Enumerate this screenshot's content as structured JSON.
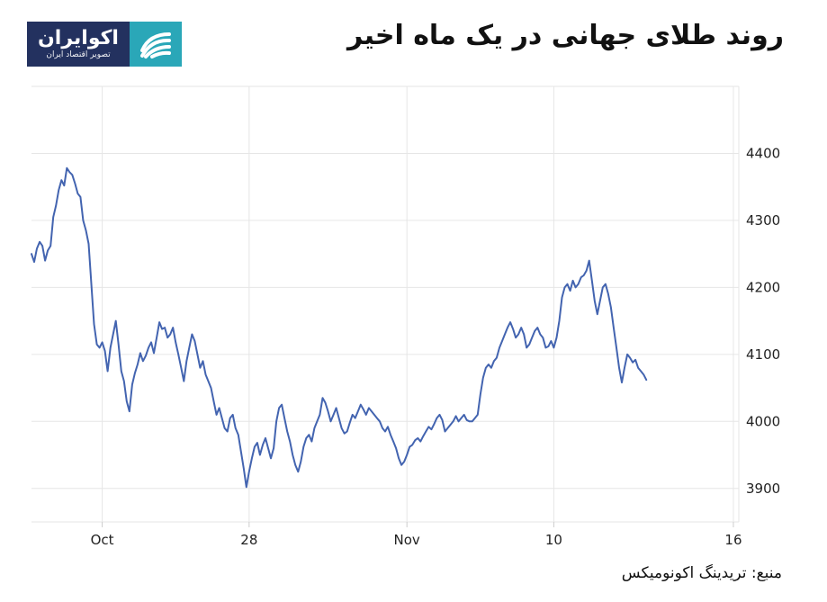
{
  "header": {
    "title": "روند طلای جهانی در یک ماه اخیر"
  },
  "logo": {
    "name": "اکوایران",
    "tagline": "تصویر اقتصاد ایران",
    "icon": "stripes-logo-icon",
    "colors": {
      "dark": "#23315f",
      "accent": "#2aa7b8"
    }
  },
  "chart_data": {
    "type": "line",
    "y_ticks": [
      "3900",
      "4000",
      "4100",
      "4200",
      "4300",
      "4400"
    ],
    "y_range": [
      3850,
      4500
    ],
    "x_ticks": [
      {
        "label": "Oct",
        "x": 3
      },
      {
        "label": "28",
        "x": 30
      },
      {
        "label": "Nov",
        "x": 59
      },
      {
        "label": "10",
        "x": 86
      },
      {
        "label": "16",
        "x": 119
      }
    ],
    "x_range": [
      -10,
      120
    ],
    "grid": true,
    "line_color": "#4364b0",
    "series": [
      {
        "name": "",
        "points": [
          [
            -10,
            4250
          ],
          [
            -9.5,
            4238
          ],
          [
            -9,
            4258
          ],
          [
            -8.5,
            4268
          ],
          [
            -8,
            4262
          ],
          [
            -7.5,
            4240
          ],
          [
            -7,
            4255
          ],
          [
            -6.5,
            4262
          ],
          [
            -6,
            4305
          ],
          [
            -5.5,
            4322
          ],
          [
            -5,
            4345
          ],
          [
            -4.5,
            4360
          ],
          [
            -4,
            4352
          ],
          [
            -3.5,
            4378
          ],
          [
            -3,
            4372
          ],
          [
            -2.5,
            4368
          ],
          [
            -2,
            4355
          ],
          [
            -1.5,
            4340
          ],
          [
            -1,
            4335
          ],
          [
            -0.5,
            4300
          ],
          [
            0,
            4285
          ],
          [
            0.5,
            4265
          ],
          [
            1,
            4205
          ],
          [
            1.5,
            4145
          ],
          [
            2,
            4115
          ],
          [
            2.5,
            4110
          ],
          [
            3,
            4118
          ],
          [
            3.5,
            4105
          ],
          [
            4,
            4075
          ],
          [
            4.5,
            4110
          ],
          [
            5,
            4130
          ],
          [
            5.5,
            4150
          ],
          [
            6,
            4115
          ],
          [
            6.5,
            4075
          ],
          [
            7,
            4060
          ],
          [
            7.5,
            4030
          ],
          [
            8,
            4015
          ],
          [
            8.5,
            4055
          ],
          [
            9,
            4072
          ],
          [
            9.5,
            4085
          ],
          [
            10,
            4102
          ],
          [
            10.5,
            4090
          ],
          [
            11,
            4098
          ],
          [
            11.5,
            4110
          ],
          [
            12,
            4118
          ],
          [
            12.5,
            4102
          ],
          [
            13,
            4125
          ],
          [
            13.5,
            4148
          ],
          [
            14,
            4138
          ],
          [
            14.5,
            4140
          ],
          [
            15,
            4125
          ],
          [
            15.5,
            4130
          ],
          [
            16,
            4140
          ],
          [
            16.5,
            4118
          ],
          [
            17,
            4100
          ],
          [
            17.5,
            4080
          ],
          [
            18,
            4060
          ],
          [
            18.5,
            4090
          ],
          [
            19,
            4110
          ],
          [
            19.5,
            4130
          ],
          [
            20,
            4120
          ],
          [
            20.5,
            4100
          ],
          [
            21,
            4080
          ],
          [
            21.5,
            4090
          ],
          [
            22,
            4070
          ],
          [
            22.5,
            4060
          ],
          [
            23,
            4050
          ],
          [
            23.5,
            4030
          ],
          [
            24,
            4010
          ],
          [
            24.5,
            4020
          ],
          [
            25,
            4005
          ],
          [
            25.5,
            3990
          ],
          [
            26,
            3985
          ],
          [
            26.5,
            4005
          ],
          [
            27,
            4010
          ],
          [
            27.5,
            3990
          ],
          [
            28,
            3980
          ],
          [
            28.5,
            3955
          ],
          [
            29,
            3930
          ],
          [
            29.5,
            3902
          ],
          [
            30,
            3925
          ],
          [
            30.5,
            3945
          ],
          [
            31,
            3962
          ],
          [
            31.5,
            3968
          ],
          [
            32,
            3950
          ],
          [
            32.5,
            3965
          ],
          [
            33,
            3975
          ],
          [
            33.5,
            3960
          ],
          [
            34,
            3945
          ],
          [
            34.5,
            3960
          ],
          [
            35,
            4000
          ],
          [
            35.5,
            4020
          ],
          [
            36,
            4025
          ],
          [
            36.5,
            4005
          ],
          [
            37,
            3985
          ],
          [
            37.5,
            3970
          ],
          [
            38,
            3950
          ],
          [
            38.5,
            3935
          ],
          [
            39,
            3925
          ],
          [
            39.5,
            3940
          ],
          [
            40,
            3962
          ],
          [
            40.5,
            3975
          ],
          [
            41,
            3980
          ],
          [
            41.5,
            3970
          ],
          [
            42,
            3990
          ],
          [
            42.5,
            4000
          ],
          [
            43,
            4010
          ],
          [
            43.5,
            4035
          ],
          [
            44,
            4028
          ],
          [
            44.5,
            4015
          ],
          [
            45,
            4000
          ],
          [
            45.5,
            4010
          ],
          [
            46,
            4020
          ],
          [
            46.5,
            4005
          ],
          [
            47,
            3990
          ],
          [
            47.5,
            3982
          ],
          [
            48,
            3985
          ],
          [
            48.5,
            3998
          ],
          [
            49,
            4010
          ],
          [
            49.5,
            4005
          ],
          [
            50,
            4015
          ],
          [
            50.5,
            4025
          ],
          [
            51,
            4018
          ],
          [
            51.5,
            4010
          ],
          [
            52,
            4020
          ],
          [
            52.5,
            4015
          ],
          [
            53,
            4010
          ],
          [
            53.5,
            4005
          ],
          [
            54,
            4000
          ],
          [
            54.5,
            3990
          ],
          [
            55,
            3985
          ],
          [
            55.5,
            3992
          ],
          [
            56,
            3980
          ],
          [
            56.5,
            3970
          ],
          [
            57,
            3960
          ],
          [
            57.5,
            3945
          ],
          [
            58,
            3935
          ],
          [
            58.5,
            3940
          ],
          [
            59,
            3950
          ],
          [
            59.5,
            3962
          ],
          [
            60,
            3965
          ],
          [
            60.5,
            3972
          ],
          [
            61,
            3975
          ],
          [
            61.5,
            3970
          ],
          [
            62,
            3978
          ],
          [
            62.5,
            3985
          ],
          [
            63,
            3992
          ],
          [
            63.5,
            3988
          ],
          [
            64,
            3996
          ],
          [
            64.5,
            4005
          ],
          [
            65,
            4010
          ],
          [
            65.5,
            4002
          ],
          [
            66,
            3985
          ],
          [
            66.5,
            3990
          ],
          [
            67,
            3995
          ],
          [
            67.5,
            4000
          ],
          [
            68,
            4008
          ],
          [
            68.5,
            4000
          ],
          [
            69,
            4005
          ],
          [
            69.5,
            4010
          ],
          [
            70,
            4002
          ],
          [
            70.5,
            4000
          ],
          [
            71,
            4000
          ],
          [
            71.5,
            4005
          ],
          [
            72,
            4010
          ],
          [
            72.5,
            4040
          ],
          [
            73,
            4065
          ],
          [
            73.5,
            4080
          ],
          [
            74,
            4085
          ],
          [
            74.5,
            4080
          ],
          [
            75,
            4090
          ],
          [
            75.5,
            4095
          ],
          [
            76,
            4110
          ],
          [
            76.5,
            4120
          ],
          [
            77,
            4130
          ],
          [
            77.5,
            4140
          ],
          [
            78,
            4148
          ],
          [
            78.5,
            4138
          ],
          [
            79,
            4125
          ],
          [
            79.5,
            4130
          ],
          [
            80,
            4140
          ],
          [
            80.5,
            4130
          ],
          [
            81,
            4110
          ],
          [
            81.5,
            4115
          ],
          [
            82,
            4125
          ],
          [
            82.5,
            4135
          ],
          [
            83,
            4140
          ],
          [
            83.5,
            4130
          ],
          [
            84,
            4125
          ],
          [
            84.5,
            4110
          ],
          [
            85,
            4112
          ],
          [
            85.5,
            4120
          ],
          [
            86,
            4110
          ],
          [
            86.5,
            4125
          ],
          [
            87,
            4150
          ],
          [
            87.5,
            4185
          ],
          [
            88,
            4200
          ],
          [
            88.5,
            4205
          ],
          [
            89,
            4195
          ],
          [
            89.5,
            4210
          ],
          [
            90,
            4200
          ],
          [
            90.5,
            4205
          ],
          [
            91,
            4215
          ],
          [
            91.5,
            4218
          ],
          [
            92,
            4225
          ],
          [
            92.5,
            4240
          ],
          [
            93,
            4210
          ],
          [
            93.5,
            4180
          ],
          [
            94,
            4160
          ],
          [
            94.5,
            4180
          ],
          [
            95,
            4200
          ],
          [
            95.5,
            4205
          ],
          [
            96,
            4190
          ],
          [
            96.5,
            4170
          ],
          [
            97,
            4140
          ],
          [
            97.5,
            4110
          ],
          [
            98,
            4080
          ],
          [
            98.5,
            4058
          ],
          [
            99,
            4080
          ],
          [
            99.5,
            4100
          ],
          [
            100,
            4095
          ],
          [
            100.5,
            4088
          ],
          [
            101,
            4092
          ],
          [
            101.5,
            4080
          ],
          [
            102,
            4075
          ],
          [
            102.5,
            4070
          ],
          [
            103,
            4062
          ]
        ]
      }
    ]
  },
  "footer": {
    "source": "منبع: تریدینگ اکونومیکس"
  }
}
